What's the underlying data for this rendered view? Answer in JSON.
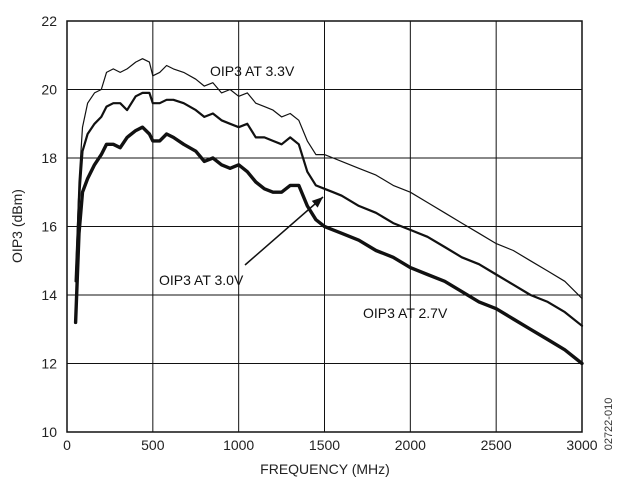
{
  "chart_data": {
    "type": "line",
    "title": "",
    "xlabel": "FREQUENCY (MHz)",
    "ylabel": "OIP3 (dBm)",
    "xlim": [
      0,
      3000
    ],
    "ylim": [
      10,
      22
    ],
    "xticks": [
      0,
      500,
      1000,
      1500,
      2000,
      2500,
      3000
    ],
    "yticks": [
      10,
      12,
      14,
      16,
      18,
      20,
      22
    ],
    "grid": true,
    "figure_id": "02722-010",
    "series": [
      {
        "name": "OIP3 AT 3.3V",
        "stroke": "thin",
        "points": [
          [
            50,
            14.5
          ],
          [
            70,
            17.3
          ],
          [
            90,
            18.9
          ],
          [
            120,
            19.6
          ],
          [
            160,
            19.9
          ],
          [
            200,
            20.0
          ],
          [
            230,
            20.5
          ],
          [
            270,
            20.6
          ],
          [
            310,
            20.5
          ],
          [
            350,
            20.6
          ],
          [
            400,
            20.8
          ],
          [
            440,
            20.9
          ],
          [
            480,
            20.8
          ],
          [
            500,
            20.4
          ],
          [
            540,
            20.5
          ],
          [
            580,
            20.7
          ],
          [
            620,
            20.6
          ],
          [
            680,
            20.5
          ],
          [
            750,
            20.3
          ],
          [
            800,
            20.1
          ],
          [
            850,
            20.2
          ],
          [
            900,
            19.9
          ],
          [
            950,
            20.0
          ],
          [
            1000,
            19.8
          ],
          [
            1050,
            19.9
          ],
          [
            1100,
            19.6
          ],
          [
            1150,
            19.5
          ],
          [
            1200,
            19.4
          ],
          [
            1250,
            19.2
          ],
          [
            1300,
            19.3
          ],
          [
            1350,
            19.1
          ],
          [
            1400,
            18.5
          ],
          [
            1450,
            18.1
          ],
          [
            1500,
            18.1
          ],
          [
            1550,
            18.0
          ],
          [
            1600,
            17.9
          ],
          [
            1700,
            17.7
          ],
          [
            1800,
            17.5
          ],
          [
            1900,
            17.2
          ],
          [
            2000,
            17.0
          ],
          [
            2100,
            16.7
          ],
          [
            2200,
            16.4
          ],
          [
            2300,
            16.1
          ],
          [
            2400,
            15.8
          ],
          [
            2500,
            15.5
          ],
          [
            2600,
            15.3
          ],
          [
            2700,
            15.0
          ],
          [
            2800,
            14.7
          ],
          [
            2900,
            14.4
          ],
          [
            3000,
            13.9
          ]
        ]
      },
      {
        "name": "OIP3 AT 3.0V",
        "stroke": "medium",
        "points": [
          [
            50,
            14.4
          ],
          [
            70,
            16.8
          ],
          [
            90,
            18.2
          ],
          [
            120,
            18.7
          ],
          [
            160,
            19.0
          ],
          [
            200,
            19.2
          ],
          [
            230,
            19.5
          ],
          [
            270,
            19.6
          ],
          [
            310,
            19.6
          ],
          [
            350,
            19.4
          ],
          [
            400,
            19.8
          ],
          [
            440,
            19.9
          ],
          [
            480,
            19.9
          ],
          [
            500,
            19.6
          ],
          [
            540,
            19.6
          ],
          [
            580,
            19.7
          ],
          [
            620,
            19.7
          ],
          [
            680,
            19.6
          ],
          [
            750,
            19.4
          ],
          [
            800,
            19.2
          ],
          [
            850,
            19.3
          ],
          [
            900,
            19.1
          ],
          [
            950,
            19.0
          ],
          [
            1000,
            18.9
          ],
          [
            1050,
            19.0
          ],
          [
            1100,
            18.6
          ],
          [
            1150,
            18.6
          ],
          [
            1200,
            18.5
          ],
          [
            1250,
            18.4
          ],
          [
            1300,
            18.6
          ],
          [
            1350,
            18.4
          ],
          [
            1400,
            17.6
          ],
          [
            1450,
            17.2
          ],
          [
            1500,
            17.1
          ],
          [
            1550,
            17.0
          ],
          [
            1600,
            16.9
          ],
          [
            1700,
            16.6
          ],
          [
            1800,
            16.4
          ],
          [
            1900,
            16.1
          ],
          [
            2000,
            15.9
          ],
          [
            2100,
            15.7
          ],
          [
            2200,
            15.4
          ],
          [
            2300,
            15.1
          ],
          [
            2400,
            14.9
          ],
          [
            2500,
            14.6
          ],
          [
            2600,
            14.3
          ],
          [
            2700,
            14.0
          ],
          [
            2800,
            13.8
          ],
          [
            2900,
            13.5
          ],
          [
            3000,
            13.1
          ]
        ]
      },
      {
        "name": "OIP3 AT 2.7V",
        "stroke": "thick",
        "points": [
          [
            50,
            13.2
          ],
          [
            70,
            15.8
          ],
          [
            90,
            17.0
          ],
          [
            120,
            17.4
          ],
          [
            160,
            17.8
          ],
          [
            200,
            18.1
          ],
          [
            230,
            18.4
          ],
          [
            270,
            18.4
          ],
          [
            310,
            18.3
          ],
          [
            350,
            18.6
          ],
          [
            400,
            18.8
          ],
          [
            440,
            18.9
          ],
          [
            480,
            18.7
          ],
          [
            500,
            18.5
          ],
          [
            540,
            18.5
          ],
          [
            580,
            18.7
          ],
          [
            620,
            18.6
          ],
          [
            680,
            18.4
          ],
          [
            750,
            18.2
          ],
          [
            800,
            17.9
          ],
          [
            850,
            18.0
          ],
          [
            900,
            17.8
          ],
          [
            950,
            17.7
          ],
          [
            1000,
            17.8
          ],
          [
            1050,
            17.6
          ],
          [
            1100,
            17.3
          ],
          [
            1150,
            17.1
          ],
          [
            1200,
            17.0
          ],
          [
            1250,
            17.0
          ],
          [
            1300,
            17.2
          ],
          [
            1350,
            17.2
          ],
          [
            1400,
            16.6
          ],
          [
            1450,
            16.2
          ],
          [
            1500,
            16.0
          ],
          [
            1550,
            15.9
          ],
          [
            1600,
            15.8
          ],
          [
            1700,
            15.6
          ],
          [
            1800,
            15.3
          ],
          [
            1900,
            15.1
          ],
          [
            2000,
            14.8
          ],
          [
            2100,
            14.6
          ],
          [
            2200,
            14.4
          ],
          [
            2300,
            14.1
          ],
          [
            2400,
            13.8
          ],
          [
            2500,
            13.6
          ],
          [
            2600,
            13.3
          ],
          [
            2700,
            13.0
          ],
          [
            2800,
            12.7
          ],
          [
            2900,
            12.4
          ],
          [
            3000,
            12.0
          ]
        ]
      }
    ],
    "annotations": [
      {
        "text": "OIP3 AT 3.3V",
        "series": "OIP3 AT 3.3V"
      },
      {
        "text": "OIP3 AT 3.0V",
        "series": "OIP3 AT 3.0V",
        "arrow": true
      },
      {
        "text": "OIP3 AT 2.7V",
        "series": "OIP3 AT 2.7V"
      }
    ]
  }
}
